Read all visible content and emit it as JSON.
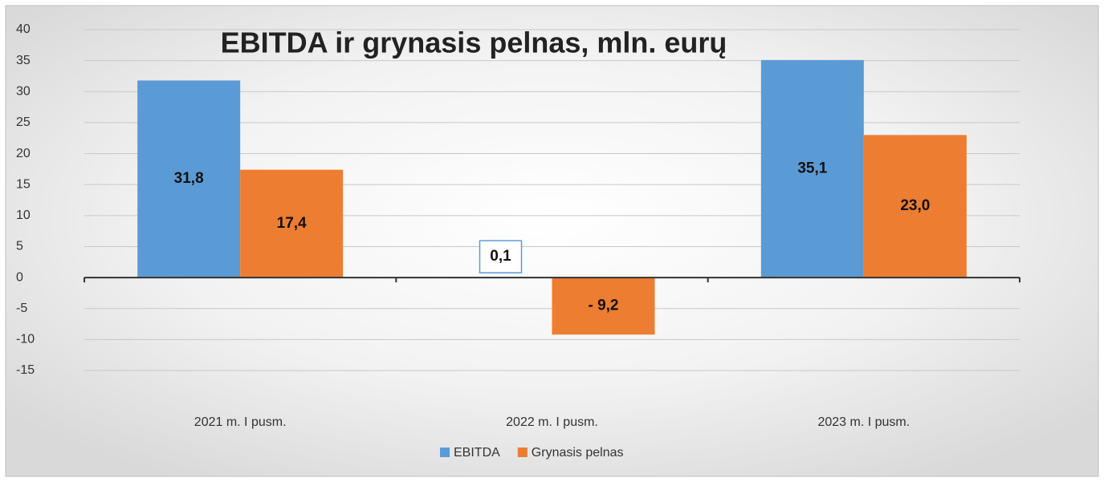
{
  "chart_data": {
    "type": "bar",
    "title": "EBITDA ir grynasis pelnas, mln. eurų",
    "categories": [
      "2021 m. I pusm.",
      "2022 m. I pusm.",
      "2023 m. I pusm."
    ],
    "series": [
      {
        "name": "EBITDA",
        "color": "#5b9bd5",
        "values": [
          31.8,
          0.1,
          35.1
        ],
        "value_labels": [
          "31,8",
          "0,1",
          "35,1"
        ]
      },
      {
        "name": "Grynasis pelnas",
        "color": "#ed7d31",
        "values": [
          17.4,
          -9.2,
          23.0
        ],
        "value_labels": [
          "17,4",
          "- 9,2",
          "23,0"
        ]
      }
    ],
    "ylim": [
      -15,
      40
    ],
    "yticks": [
      -15,
      -10,
      -5,
      0,
      5,
      10,
      15,
      20,
      25,
      30,
      35,
      40
    ],
    "grid": true,
    "legend": "bottom"
  }
}
